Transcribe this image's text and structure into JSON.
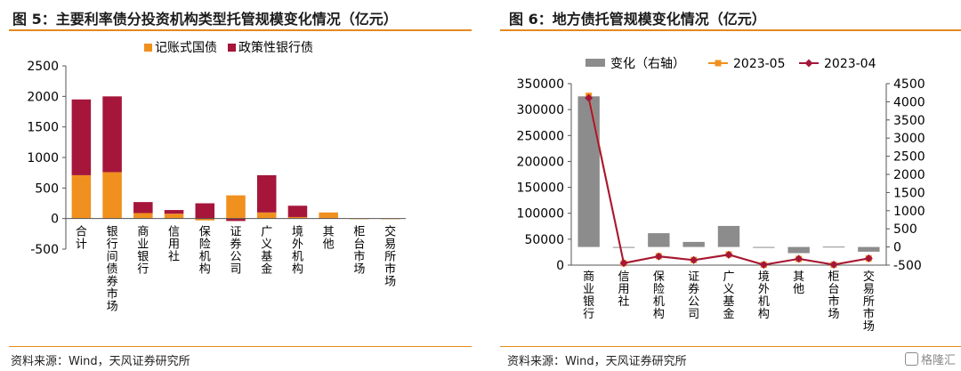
{
  "chart_data": [
    {
      "type": "bar",
      "title": "图 5：主要利率债分投资机构类型托管规模变化情况（亿元）",
      "source": "资料来源：Wind，天风证券研究所",
      "categories": [
        "合计",
        "银行间债券市场",
        "商业银行",
        "信用社",
        "保险机构",
        "证券公司",
        "广义基金",
        "境外机构",
        "其他",
        "柜台市场",
        "交易所市场"
      ],
      "stacked": true,
      "series": [
        {
          "name": "记账式国债",
          "color": "#f0901e",
          "values": [
            710,
            760,
            90,
            80,
            -30,
            380,
            100,
            25,
            100,
            -10,
            -10
          ]
        },
        {
          "name": "政策性银行债",
          "color": "#a5163a",
          "values": [
            1240,
            1240,
            180,
            60,
            250,
            -40,
            610,
            185,
            0,
            0,
            0
          ]
        }
      ],
      "ylim": [
        -500,
        2500
      ],
      "yticks": [
        -500,
        0,
        500,
        1000,
        1500,
        2000,
        2500
      ],
      "xlabel": "",
      "ylabel": "",
      "legend": "top-center",
      "grid": false
    },
    {
      "type": "bar+line",
      "title": "图 6：地方债托管规模变化情况（亿元）",
      "source": "资料来源：Wind，天风证券研究所",
      "categories": [
        "商业银行",
        "信用社",
        "保险机构",
        "证券公司",
        "广义基金",
        "境外机构",
        "其他",
        "柜台市场",
        "交易所市场"
      ],
      "series": [
        {
          "name": "变化（右轴）",
          "axis": "right",
          "type": "bar",
          "color": "#8c8c8c",
          "values": [
            4150,
            -20,
            380,
            140,
            580,
            0,
            -170,
            10,
            -130
          ]
        },
        {
          "name": "2023-05",
          "axis": "left",
          "type": "line",
          "color": "#f0901e",
          "values": [
            326500,
            3800,
            17200,
            9900,
            20600,
            700,
            12000,
            850,
            12900
          ]
        },
        {
          "name": "2023-04",
          "axis": "left",
          "type": "line",
          "color": "#a5163a",
          "values": [
            322350,
            3820,
            16820,
            9760,
            20020,
            700,
            12170,
            840,
            13030
          ]
        }
      ],
      "ylim_left": [
        0,
        350000
      ],
      "yticks_left": [
        0,
        50000,
        100000,
        150000,
        200000,
        250000,
        300000,
        350000
      ],
      "ylim_right": [
        -500,
        4500
      ],
      "yticks_right": [
        -500,
        0,
        500,
        1000,
        1500,
        2000,
        2500,
        3000,
        3500,
        4000,
        4500
      ],
      "xlabel": "",
      "ylabel": "",
      "legend": "top-center",
      "grid": false
    }
  ],
  "watermark": "格隆汇"
}
